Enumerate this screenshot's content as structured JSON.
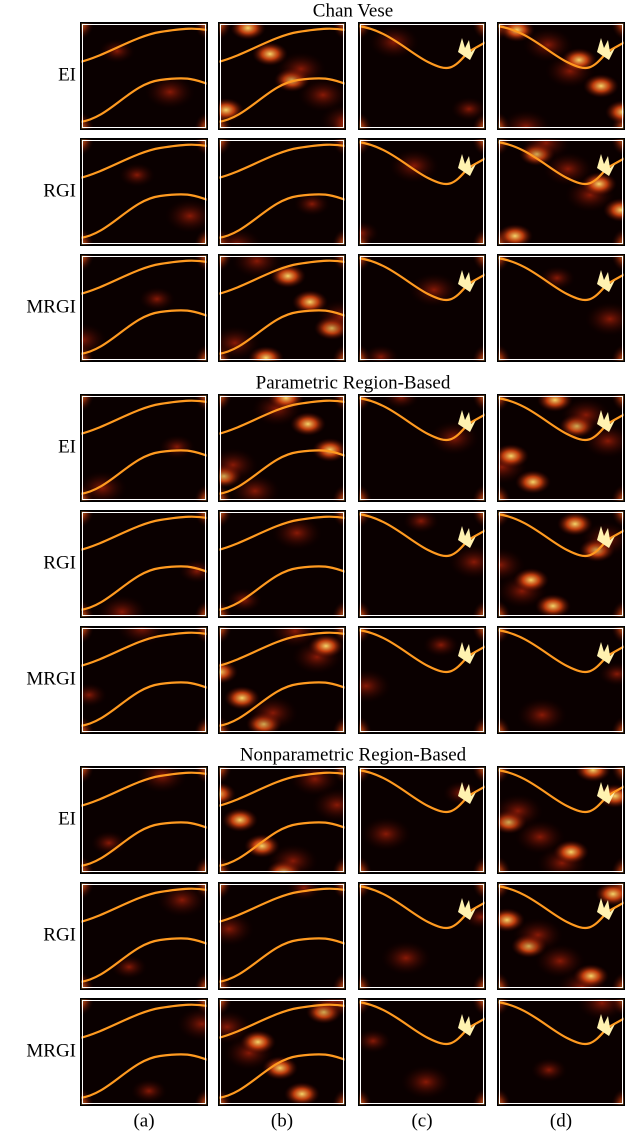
{
  "sections": [
    {
      "title": "Chan Vese",
      "rows": [
        "EI",
        "RGI",
        "MRGI"
      ]
    },
    {
      "title": "Parametric Region-Based",
      "rows": [
        "EI",
        "RGI",
        "MRGI"
      ]
    },
    {
      "title": "Nonparametric Region-Based",
      "rows": [
        "EI",
        "RGI",
        "MRGI"
      ]
    }
  ],
  "columns": [
    "(a)",
    "(b)",
    "(c)",
    "(d)"
  ]
}
